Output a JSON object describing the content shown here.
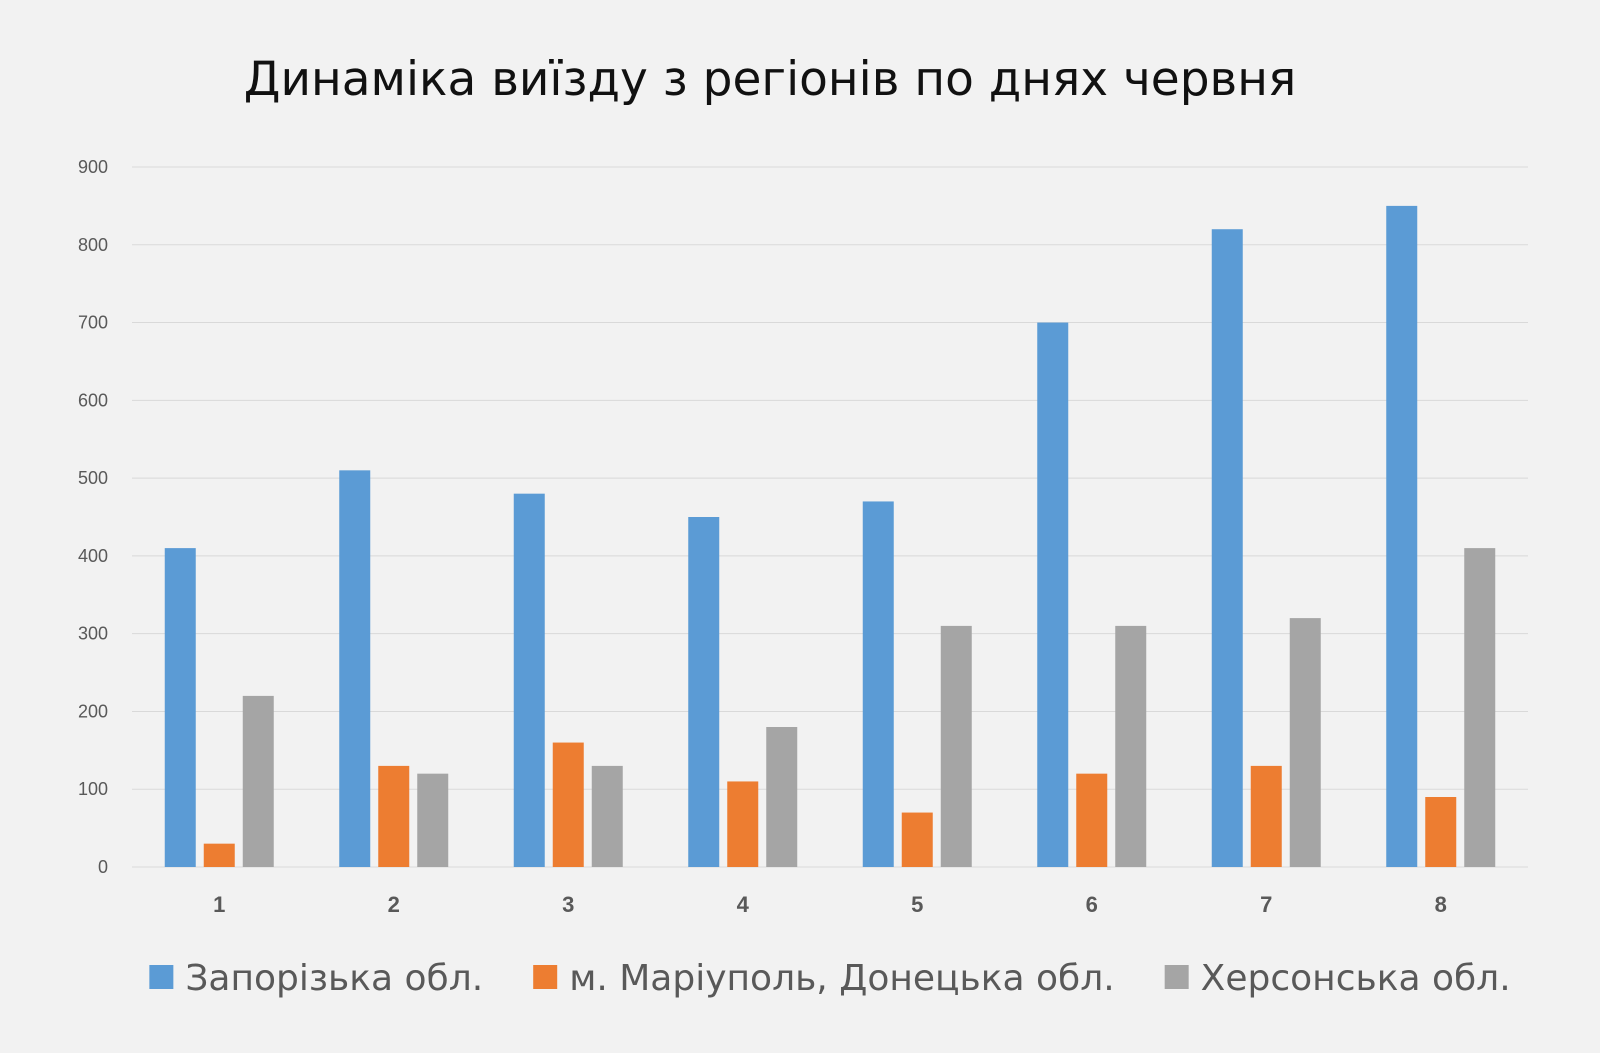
{
  "chart_data": {
    "type": "bar",
    "title": "Динаміка виїзду з регіонів по днях червня",
    "xlabel": "",
    "ylabel": "",
    "categories": [
      "1",
      "2",
      "3",
      "4",
      "5",
      "6",
      "7",
      "8"
    ],
    "series": [
      {
        "name": "Запорізька обл.",
        "color": "#5b9bd5",
        "values": [
          410,
          510,
          480,
          450,
          470,
          700,
          820,
          850
        ]
      },
      {
        "name": "м. Маріуполь, Донецька обл.",
        "color": "#ed7d31",
        "values": [
          30,
          130,
          160,
          110,
          70,
          120,
          130,
          90
        ]
      },
      {
        "name": "Херсонська обл.",
        "color": "#a5a5a5",
        "values": [
          220,
          120,
          130,
          180,
          310,
          310,
          320,
          410
        ]
      }
    ],
    "ylim": [
      0,
      900
    ],
    "yticks": [
      0,
      100,
      200,
      300,
      400,
      500,
      600,
      700,
      800,
      900
    ],
    "grid": true,
    "legend_position": "bottom"
  }
}
